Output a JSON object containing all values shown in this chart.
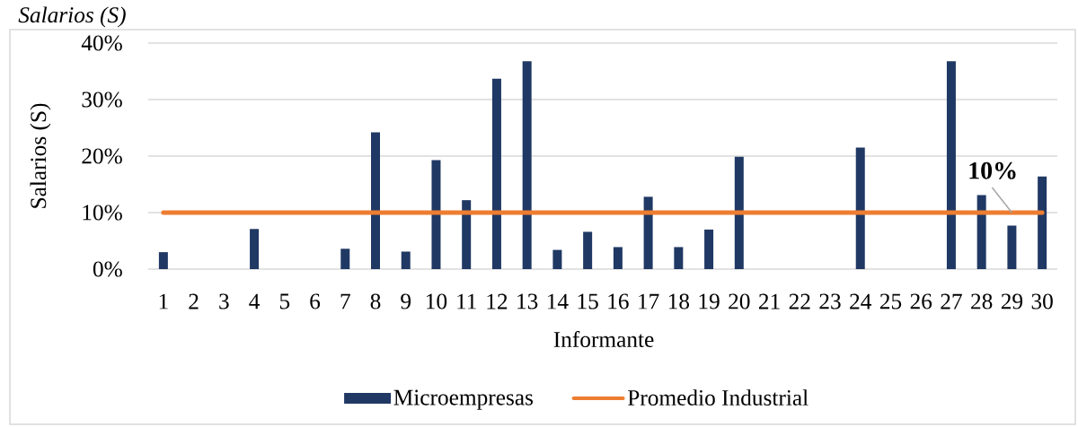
{
  "chart_data": {
    "type": "bar",
    "title": "Salarios (S)",
    "xlabel": "Informante",
    "ylabel": "Salarios (S)",
    "categories": [
      "1",
      "2",
      "3",
      "4",
      "5",
      "6",
      "7",
      "8",
      "9",
      "10",
      "11",
      "12",
      "13",
      "14",
      "15",
      "16",
      "17",
      "18",
      "19",
      "20",
      "21",
      "22",
      "23",
      "24",
      "25",
      "26",
      "27",
      "28",
      "29",
      "30"
    ],
    "series": [
      {
        "name": "Microempresas",
        "type": "bar",
        "color": "#203864",
        "values": [
          3.0,
          null,
          null,
          7.1,
          null,
          null,
          3.6,
          24.2,
          3.1,
          19.3,
          12.2,
          33.7,
          36.8,
          3.4,
          6.6,
          3.9,
          12.8,
          3.9,
          7.0,
          19.9,
          null,
          null,
          null,
          21.5,
          null,
          null,
          36.8,
          13.1,
          7.7,
          16.4
        ]
      },
      {
        "name": "Promedio Industrial",
        "type": "line",
        "color": "#ed7d31",
        "values": [
          10,
          10,
          10,
          10,
          10,
          10,
          10,
          10,
          10,
          10,
          10,
          10,
          10,
          10,
          10,
          10,
          10,
          10,
          10,
          10,
          10,
          10,
          10,
          10,
          10,
          10,
          10,
          10,
          10,
          10
        ],
        "value_labels": [
          null,
          null,
          null,
          null,
          null,
          null,
          null,
          null,
          null,
          null,
          null,
          null,
          null,
          null,
          null,
          null,
          null,
          null,
          null,
          null,
          null,
          null,
          null,
          null,
          null,
          null,
          null,
          null,
          "10%",
          null
        ]
      }
    ],
    "ylim": [
      0,
      40
    ],
    "yticks": [
      {
        "value": 0,
        "label": "0%"
      },
      {
        "value": 10,
        "label": "10%"
      },
      {
        "value": 20,
        "label": "20%"
      },
      {
        "value": 30,
        "label": "30%"
      },
      {
        "value": 40,
        "label": "40%"
      }
    ],
    "grid": "y",
    "legend": "bottom"
  }
}
